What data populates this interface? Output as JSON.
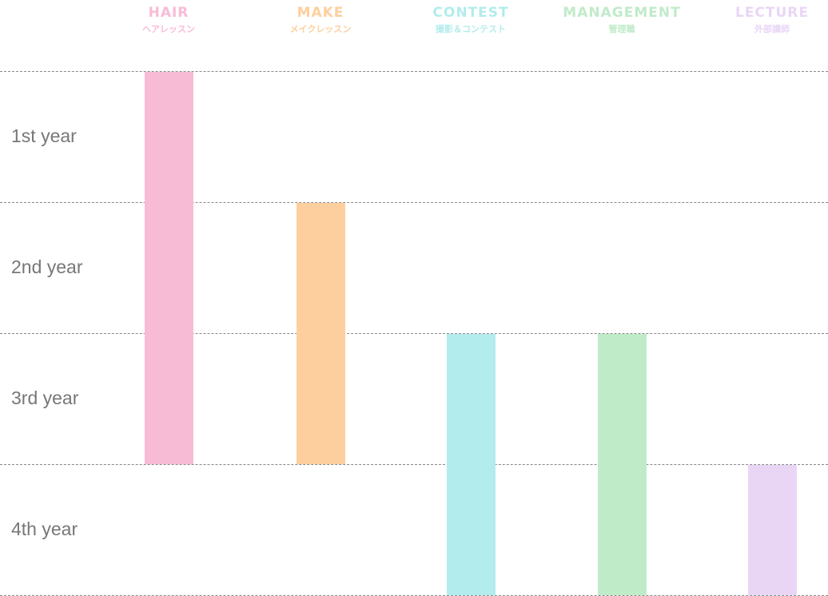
{
  "chart_data": {
    "type": "bar",
    "orientation": "vertical-range",
    "rows": [
      "1st year",
      "2nd year",
      "3rd year",
      "4th year"
    ],
    "grid": true,
    "series": [
      {
        "name": "HAIR",
        "subtitle": "ヘアレッスン",
        "color": "#f8bbd6",
        "start": 1,
        "end": 3
      },
      {
        "name": "MAKE",
        "subtitle": "メイクレッスン",
        "color": "#fecf9e",
        "start": 2,
        "end": 3
      },
      {
        "name": "CONTEST",
        "subtitle": "撮影＆コンテスト",
        "color": "#b3ecec",
        "start": 3,
        "end": 4
      },
      {
        "name": "MANAGEMENT",
        "subtitle": "管理職",
        "color": "#c0ebc9",
        "start": 3,
        "end": 4
      },
      {
        "name": "LECTURE",
        "subtitle": "外部講師",
        "color": "#e9d6f5",
        "start": 4,
        "end": 4
      }
    ]
  }
}
